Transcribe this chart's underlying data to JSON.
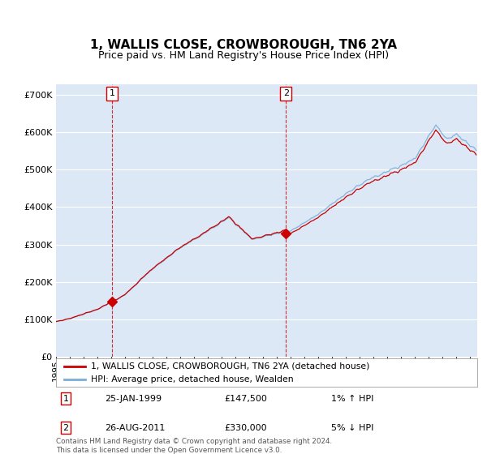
{
  "title": "1, WALLIS CLOSE, CROWBOROUGH, TN6 2YA",
  "subtitle": "Price paid vs. HM Land Registry's House Price Index (HPI)",
  "ylim": [
    0,
    730000
  ],
  "yticks": [
    0,
    100000,
    200000,
    300000,
    400000,
    500000,
    600000,
    700000
  ],
  "background_color": "#ffffff",
  "plot_bg_color": "#dce8f5",
  "grid_color": "#ffffff",
  "hpi_color": "#7aaed6",
  "price_color": "#cc0000",
  "sale1_x": 1999.07,
  "sale1_y": 147500,
  "sale2_x": 2011.65,
  "sale2_y": 330000,
  "vline_color": "#cc0000",
  "legend_label_price": "1, WALLIS CLOSE, CROWBOROUGH, TN6 2YA (detached house)",
  "legend_label_hpi": "HPI: Average price, detached house, Wealden",
  "annotation1_label": "1",
  "annotation1_date": "25-JAN-1999",
  "annotation1_price": "£147,500",
  "annotation1_hpi": "1% ↑ HPI",
  "annotation2_label": "2",
  "annotation2_date": "26-AUG-2011",
  "annotation2_price": "£330,000",
  "annotation2_hpi": "5% ↓ HPI",
  "footer": "Contains HM Land Registry data © Crown copyright and database right 2024.\nThis data is licensed under the Open Government Licence v3.0.",
  "xlim_start": 1995.0,
  "xlim_end": 2025.5,
  "title_fontsize": 11,
  "subtitle_fontsize": 9
}
